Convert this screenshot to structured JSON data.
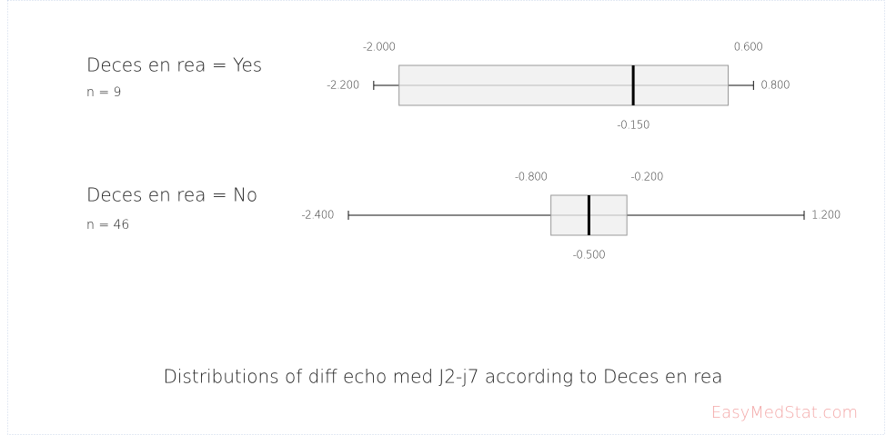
{
  "chart_data": {
    "type": "box",
    "title": "Distributions of diff echo med J2-j7 according to Deces en rea",
    "watermark": "EasyMedStat.com",
    "stats": [
      "min",
      "q1",
      "median",
      "q3",
      "max"
    ],
    "series": [
      {
        "name": "Deces en rea = Yes",
        "n_label": "n = 9",
        "values": [
          -2.2,
          -2.0,
          -0.15,
          0.6,
          0.8
        ],
        "value_labels": [
          "-2.200",
          "-2.000",
          "-0.150",
          "0.600",
          "0.800"
        ]
      },
      {
        "name": "Deces en rea = No",
        "n_label": "n = 46",
        "values": [
          -2.4,
          -0.8,
          -0.5,
          -0.2,
          1.2
        ],
        "value_labels": [
          "-2.400",
          "-0.800",
          "-0.500",
          "-0.200",
          "1.200"
        ]
      }
    ],
    "box_color": "#f2f2f2",
    "box_stroke": "#999999",
    "whisker_color": "#111111"
  }
}
